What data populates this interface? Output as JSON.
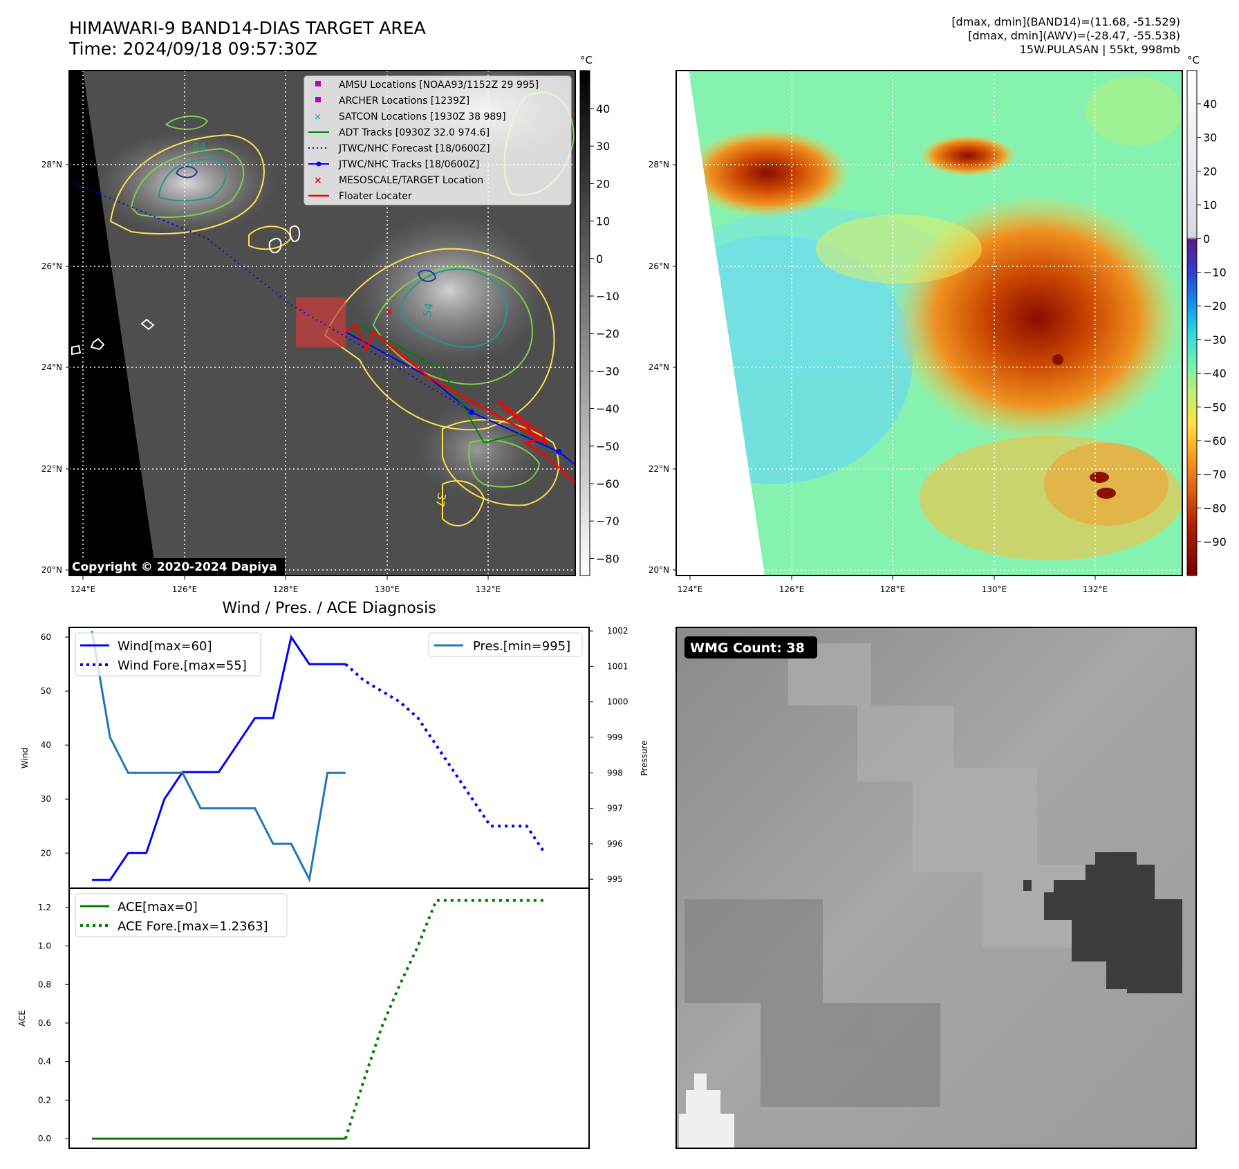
{
  "header": {
    "title_line1": "HIMAWARI-9 BAND14-DIAS TARGET AREA",
    "title_line2": "Time: 2024/09/18 09:57:30Z",
    "info_line1": "[dmax, dmin](BAND14)=(11.68, -51.529)",
    "info_line2": "[dmax, dmin](AWV)=(-28.47, -55.538)",
    "info_line3": "15W.PULASAN | 55kt, 998mb"
  },
  "map_panels": {
    "lat_labels": [
      "28°N",
      "26°N",
      "24°N",
      "22°N",
      "20°N"
    ],
    "lon_labels": [
      "124°E",
      "126°E",
      "128°E",
      "130°E",
      "132°E"
    ],
    "colorbar_unit": "°C",
    "ir_colorbar_ticks": [
      "40",
      "30",
      "20",
      "10",
      "0",
      "−10",
      "−20",
      "−30",
      "−40",
      "−50",
      "−60",
      "−70",
      "−80"
    ],
    "color_colorbar_ticks": [
      "40",
      "30",
      "20",
      "10",
      "0",
      "−10",
      "−20",
      "−30",
      "−40",
      "−50",
      "−60",
      "−70",
      "−80",
      "−90"
    ],
    "copyright": "Copyright © 2020-2024 Dapiya",
    "contour_labels": [
      "64",
      "54",
      "37"
    ],
    "legend": [
      {
        "label": "AMSU Locations [NOAA93/1152Z 29 995]",
        "color": "#c000c0",
        "marker": "square"
      },
      {
        "label": "ARCHER Locations [1239Z]",
        "color": "#c000c0",
        "marker": "square"
      },
      {
        "label": "SATCON Locations [1930Z 38 989]",
        "color": "#1fbcbc",
        "marker": "x"
      },
      {
        "label": "ADT Tracks [0930Z 32.0 974.6]",
        "color": "#007f00",
        "marker": "line"
      },
      {
        "label": "JTWC/NHC Forecast [18/0600Z]",
        "color": "#0000ff",
        "marker": "dotted"
      },
      {
        "label": "JTWC/NHC Tracks [18/0600Z]",
        "color": "#0000ff",
        "marker": "line-dot"
      },
      {
        "label": "MESOSCALE/TARGET Location",
        "color": "#ff0000",
        "marker": "x"
      },
      {
        "label": "Floater Locater",
        "color": "#ff0000",
        "marker": "line"
      }
    ]
  },
  "diag": {
    "title": "Wind / Pres. / ACE Diagnosis",
    "wind_ylabel": "Wind",
    "pres_ylabel": "Pressure",
    "ace_ylabel": "ACE",
    "wind_ticks": [
      "60",
      "50",
      "40",
      "30",
      "20"
    ],
    "pres_ticks": [
      "1002",
      "1001",
      "1000",
      "999",
      "998",
      "997",
      "996",
      "995"
    ],
    "ace_ticks": [
      "1.2",
      "1.0",
      "0.8",
      "0.6",
      "0.4",
      "0.2",
      "0.0"
    ],
    "legend_wind": "Wind[max=60]",
    "legend_wind_fore": "Wind Fore.[max=55]",
    "legend_pres": "Pres.[min=995]",
    "legend_ace": "ACE[max=0]",
    "legend_ace_fore": "ACE Fore.[max=1.2363]"
  },
  "wmg": {
    "label": "WMG Count: 38"
  },
  "chart_data": [
    {
      "type": "line",
      "title": "Wind / Pres. / ACE Diagnosis",
      "ylabel": "Wind",
      "ylim": [
        13.5,
        61.8
      ],
      "series": [
        {
          "name": "Wind[max=60]",
          "x": [
            0,
            1,
            2,
            3,
            4,
            5,
            6,
            7,
            8,
            9,
            10,
            11,
            12,
            13,
            14
          ],
          "values": [
            15,
            15,
            20,
            20,
            30,
            35,
            35,
            35,
            40,
            45,
            45,
            60,
            55,
            55,
            55
          ],
          "color": "#0000ff",
          "style": "solid"
        },
        {
          "name": "Wind Fore.[max=55]",
          "x": [
            14,
            15,
            16,
            17,
            18,
            19,
            20,
            21,
            22,
            23,
            24,
            25
          ],
          "values": [
            55,
            52,
            50,
            48,
            45,
            40,
            35,
            30,
            25,
            25,
            25,
            20
          ],
          "color": "#0000ff",
          "style": "dotted"
        }
      ]
    },
    {
      "type": "line",
      "ylabel": "Pressure",
      "ylim": [
        994.75,
        1002.1
      ],
      "series": [
        {
          "name": "Pres.[min=995]",
          "x": [
            0,
            1,
            2,
            3,
            4,
            5,
            6,
            7,
            8,
            9,
            10,
            11,
            12,
            13,
            14
          ],
          "values": [
            1002,
            999,
            998,
            998,
            998,
            998,
            997,
            997,
            997,
            997,
            996,
            996,
            995,
            998,
            998
          ],
          "color": "#1f77b4",
          "style": "solid"
        }
      ]
    },
    {
      "type": "line",
      "ylabel": "ACE",
      "ylim": [
        -0.05,
        1.3
      ],
      "series": [
        {
          "name": "ACE[max=0]",
          "x": [
            0,
            14
          ],
          "values": [
            0,
            0
          ],
          "color": "#008000",
          "style": "solid"
        },
        {
          "name": "ACE Fore.[max=1.2363]",
          "x": [
            14,
            15,
            16,
            17,
            18,
            19,
            20,
            21,
            22,
            23,
            24,
            25
          ],
          "values": [
            0,
            0.3,
            0.58,
            0.8,
            1.0,
            1.2363,
            1.2363,
            1.2363,
            1.2363,
            1.2363,
            1.2363,
            1.2363
          ],
          "color": "#008000",
          "style": "dotted"
        }
      ]
    }
  ]
}
